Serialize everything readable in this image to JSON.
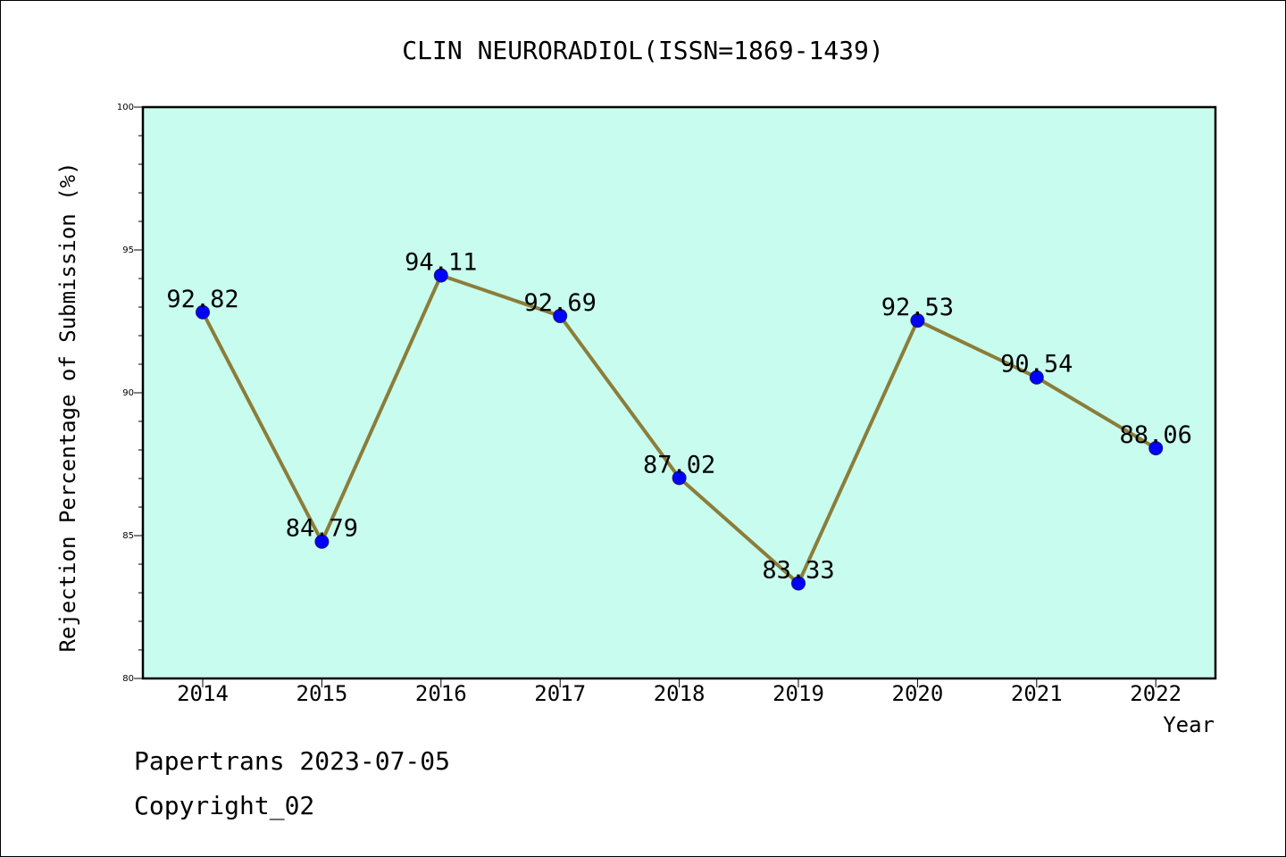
{
  "footer": {
    "source_line": "Papertrans 2023-07-05",
    "copyright_line": "Copyright_02"
  },
  "chart_data": {
    "type": "line",
    "title": "CLIN NEURORADIOL(ISSN=1869-1439)",
    "xlabel": "Year",
    "ylabel": "Rejection Percentage of Submission (%)",
    "categories": [
      "2014",
      "2015",
      "2016",
      "2017",
      "2018",
      "2019",
      "2020",
      "2021",
      "2022"
    ],
    "values": [
      92.82,
      84.79,
      94.11,
      92.69,
      87.02,
      83.33,
      92.53,
      90.54,
      88.06
    ],
    "data_labels": [
      "92.82",
      "84.79",
      "94.11",
      "92.69",
      "87.02",
      "83.33",
      "92.53",
      "90.54",
      "88.06"
    ],
    "ylim": [
      80,
      100
    ],
    "yticks": [
      "80",
      "85",
      "90",
      "95",
      "100"
    ],
    "grid": false,
    "legend": "none",
    "colors": {
      "plot_background": "#c8fcee",
      "line": "#8b7d3a",
      "marker": "#0000ff",
      "axis": "#000000"
    }
  }
}
